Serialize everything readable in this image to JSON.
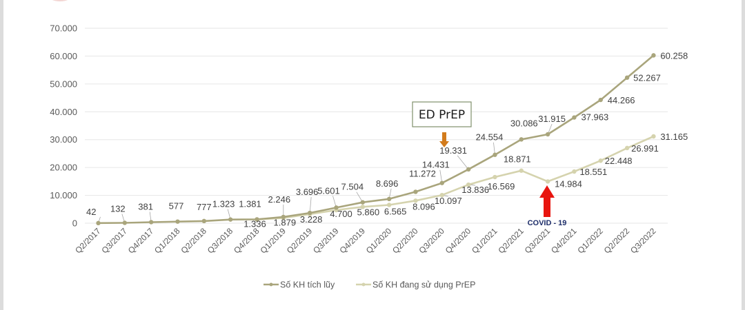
{
  "chart_data": {
    "type": "line",
    "title": "",
    "xlabel": "",
    "ylabel": "",
    "ylim": [
      0,
      70000
    ],
    "yticks": [
      0,
      10000,
      20000,
      30000,
      40000,
      50000,
      60000,
      70000
    ],
    "ytick_labels": [
      "0",
      "10.000",
      "20.000",
      "30.000",
      "40.000",
      "50.000",
      "60.000",
      "70.000"
    ],
    "grid": true,
    "legend_position": "bottom",
    "categories": [
      "Q2/2017",
      "Q3/2017",
      "Q4/2017",
      "Q1/2018",
      "Q2/2018",
      "Q3/2018",
      "Q4/2018",
      "Q1/2019",
      "Q2/2019",
      "Q3/2019",
      "Q4/2019",
      "Q1/2020",
      "Q2/2020",
      "Q3/2020",
      "Q4/2020",
      "Q1/2021",
      "Q2/2021",
      "Q3/2021",
      "Q4/2021",
      "Q1/2022",
      "Q2/2022",
      "Q3/2022"
    ],
    "series": [
      {
        "name": "Số KH tích lũy",
        "color": "#a9a57c",
        "values": [
          42,
          132,
          381,
          577,
          777,
          1323,
          1381,
          2246,
          3696,
          5601,
          7504,
          8696,
          11272,
          14431,
          19331,
          24554,
          30086,
          31915,
          37963,
          44266,
          52267,
          60258
        ],
        "labels": [
          "42",
          "132",
          "381",
          "577",
          "777",
          "1.323",
          "1.381",
          "2.246",
          "3.696",
          "5.601",
          "7.504",
          "8.696",
          "11.272",
          "14.431",
          "19.331",
          "24.554",
          "30.086",
          "31.915",
          "37.963",
          "44.266",
          "52.267",
          "60.258"
        ]
      },
      {
        "name": "Số KH đang sử dụng PrEP",
        "color": "#d5d3ae",
        "values": [
          null,
          null,
          null,
          null,
          null,
          null,
          1336,
          1879,
          3228,
          4700,
          5860,
          6565,
          8096,
          10097,
          13836,
          16569,
          18871,
          14984,
          18551,
          22448,
          26991,
          31165
        ],
        "labels": [
          "",
          "",
          "",
          "",
          "",
          "",
          "1.336",
          "1.879",
          "3.228",
          "4.700",
          "5.860",
          "6.565",
          "8.096",
          "10.097",
          "13.836",
          "16.569",
          "18.871",
          "14.984",
          "18.551",
          "22.448",
          "26.991",
          "31.165"
        ]
      }
    ],
    "annotations": [
      {
        "text": "ED PrEP",
        "category": "Q3/2020",
        "arrow_color": "#d27b1c"
      },
      {
        "text": "COVID - 19",
        "category": "Q3/2021",
        "arrow_color": "#e8150f"
      }
    ]
  }
}
